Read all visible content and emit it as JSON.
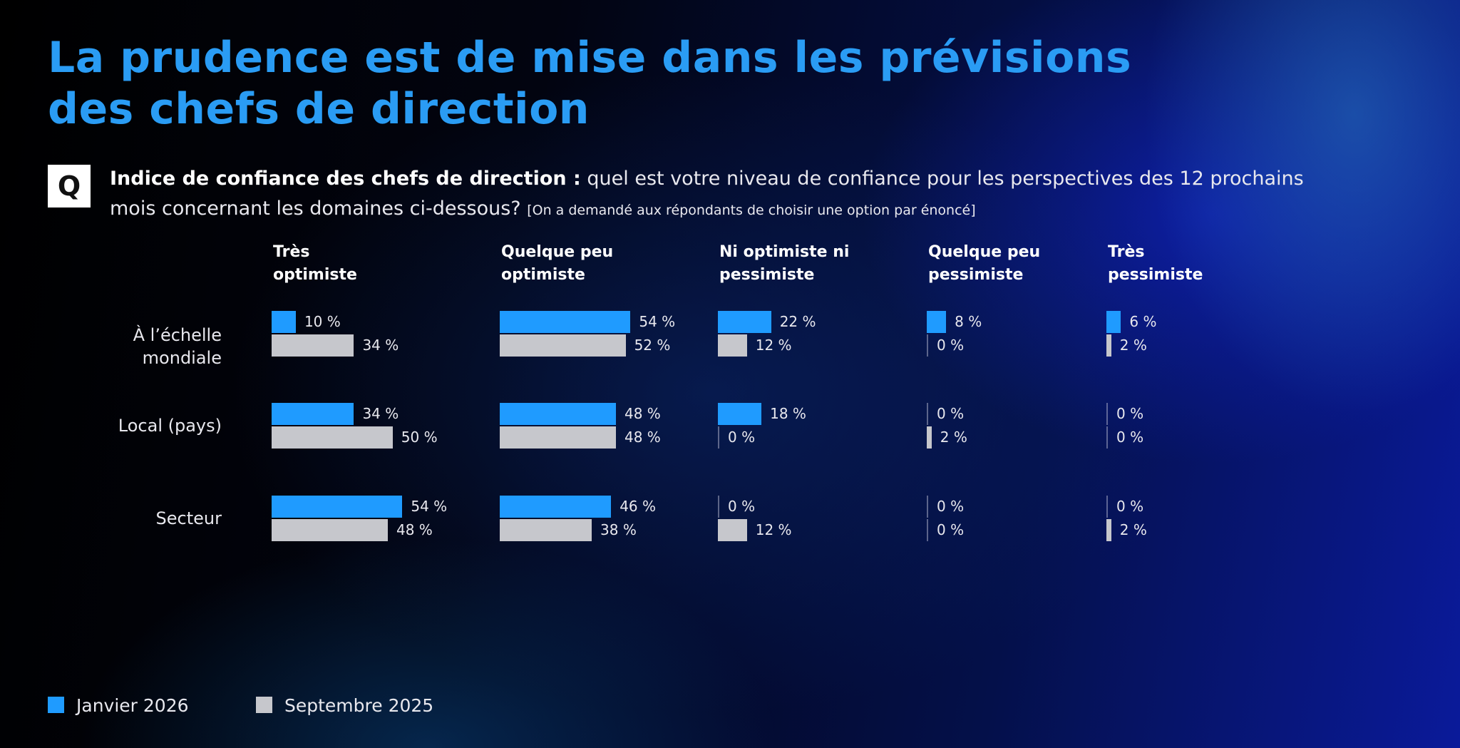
{
  "chart_data": {
    "type": "bar",
    "orientation": "horizontal",
    "title": [
      "La prudence est de mise dans les prévisions",
      "des chefs de direction"
    ],
    "question": {
      "badge": "Q",
      "label": "Indice de confiance des chefs de direction :",
      "text": "quel est votre niveau de confiance pour les perspectives des 12 prochains mois concernant les domaines ci-dessous?",
      "note": "[On a demandé aux répondants de choisir une option par énoncé]"
    },
    "panels": [
      [
        "Très",
        "optimiste"
      ],
      [
        "Quelque peu",
        "optimiste"
      ],
      [
        "Ni optimiste ni",
        "pessimiste"
      ],
      [
        "Quelque peu",
        "pessimiste"
      ],
      [
        "Très",
        "pessimiste"
      ]
    ],
    "categories": [
      "À l’échelle mondiale",
      "Local (pays)",
      "Secteur"
    ],
    "series": [
      {
        "name": "Janvier 2026",
        "color": "#1f9bff",
        "values": [
          [
            10,
            34,
            54
          ],
          [
            54,
            48,
            46
          ],
          [
            22,
            18,
            0
          ],
          [
            8,
            0,
            0
          ],
          [
            6,
            0,
            0
          ]
        ],
        "value_labels": [
          [
            "10 %",
            "34 %",
            "54 %"
          ],
          [
            "54 %",
            "48 %",
            "46 %"
          ],
          [
            "22 %",
            "18 %",
            "0 %"
          ],
          [
            "8 %",
            "0 %",
            "0 %"
          ],
          [
            "6 %",
            "0 %",
            "0 %"
          ]
        ]
      },
      {
        "name": "Septembre 2025",
        "color": "#c6c7cc",
        "values": [
          [
            34,
            50,
            48
          ],
          [
            52,
            48,
            38
          ],
          [
            12,
            0,
            12
          ],
          [
            0,
            2,
            0
          ],
          [
            2,
            0,
            2
          ]
        ],
        "value_labels": [
          [
            "34 %",
            "50 %",
            "48 %"
          ],
          [
            "52 %",
            "48 %",
            "38 %"
          ],
          [
            "12 %",
            "0 %",
            "12 %"
          ],
          [
            "0 %",
            "2 %",
            "0 %"
          ],
          [
            "2 %",
            "0 %",
            "2 %"
          ]
        ]
      }
    ],
    "legend": true
  }
}
